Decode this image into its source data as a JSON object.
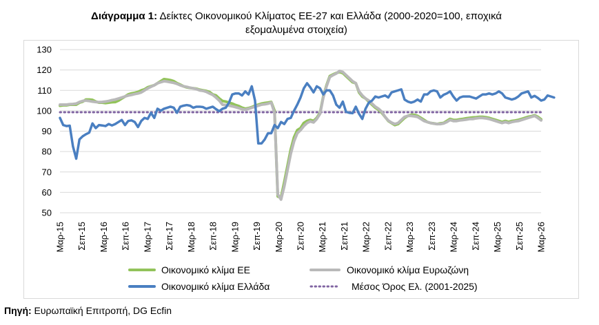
{
  "title": {
    "bold": "Διάγραμμα 1:",
    "rest": " Δείκτες Οικονομικού Κλίματος ΕΕ-27 και Ελλάδα (2000-2020=100, εποχικά",
    "line2": "εξομαλυμένα στοιχεία)"
  },
  "source": {
    "bold": "Πηγή:",
    "rest": " Ευρωπαϊκή Επιτροπή, DG Ecfin"
  },
  "colors": {
    "eu": "#92c35a",
    "euro": "#b9b9b9",
    "greece": "#4a7fc1",
    "avg": "#8064a2"
  },
  "chart_data": {
    "type": "line",
    "ylim": [
      50,
      130
    ],
    "yticks": [
      50,
      60,
      70,
      80,
      90,
      100,
      110,
      120,
      130
    ],
    "x_tick_labels": [
      "Μαρ-15",
      "Σεπ-15",
      "Μαρ-16",
      "Σεπ-16",
      "Μαρ-17",
      "Σεπ-17",
      "Μαρ-18",
      "Σεπ-18",
      "Μαρ-19",
      "Σεπ-19",
      "Μαρ-20",
      "Σεπ-20",
      "Μαρ-21",
      "Σεπ-21",
      "Μαρ-22",
      "Σεπ-22",
      "Μαρ-23",
      "Σεπ-23",
      "Μαρ-24",
      "Σεπ-24",
      "Μαρ-25",
      "Σεπ-25",
      "Μαρ-26"
    ],
    "grid": "horizontal",
    "legend_position": "bottom",
    "series": [
      {
        "name": "Οικονομικό κλίμα ΕΕ",
        "color_key": "eu",
        "values": [
          102.5,
          102.7,
          102.7,
          103,
          103,
          103,
          104,
          104.5,
          105.5,
          105.5,
          105.3,
          104.5,
          104,
          104,
          103.8,
          104,
          104.2,
          104.3,
          105,
          106,
          107,
          108,
          108.5,
          108.8,
          109.2,
          110,
          110.5,
          111.5,
          112,
          112.5,
          113.5,
          114.5,
          115.5,
          115.3,
          115,
          114.5,
          113.5,
          112.8,
          112,
          111.5,
          111.2,
          111,
          110.8,
          110.3,
          110,
          109.7,
          109.2,
          108,
          107.5,
          106,
          104.8,
          104.5,
          104,
          103.5,
          102.8,
          102.3,
          101.5,
          101,
          101.3,
          101.8,
          102.5,
          103,
          103.5,
          103.8,
          104,
          104.3,
          100,
          58,
          57.5,
          65,
          73,
          81,
          87,
          90.5,
          91.5,
          94,
          95,
          95.5,
          95,
          96.5,
          99,
          107,
          112.5,
          117,
          117.8,
          118.5,
          119,
          118.5,
          117,
          115.5,
          114,
          113.5,
          109,
          107,
          106,
          104.5,
          103,
          101.5,
          100.5,
          99,
          97,
          95,
          94,
          93,
          93.5,
          95,
          96.5,
          97.5,
          98,
          98,
          97.5,
          96.5,
          95.5,
          94.5,
          94,
          93.8,
          93.5,
          93.8,
          94,
          95,
          96,
          95.5,
          95.5,
          95.8,
          96,
          96.3,
          96.5,
          96.7,
          96.8,
          97,
          97,
          96.8,
          96.5,
          96,
          95.5,
          95,
          94.5,
          95,
          94.5,
          95,
          95.2,
          95.5,
          96,
          96.5,
          97,
          97.3,
          97.8,
          97,
          95.8
        ]
      },
      {
        "name": "Οικονομικό κλίμα Ευρωζώνη",
        "color_key": "euro",
        "values": [
          103,
          103,
          103,
          103.2,
          103.3,
          103.5,
          104.3,
          104.8,
          105,
          104.8,
          104.5,
          104.3,
          104.2,
          104.3,
          104.5,
          104.8,
          105.2,
          105.5,
          106,
          106.5,
          107,
          107.5,
          107.8,
          108.2,
          108.5,
          109,
          110,
          111,
          111.8,
          112.5,
          113.5,
          114,
          114.5,
          114.3,
          114,
          113.7,
          113.2,
          112.5,
          112,
          111.7,
          111.3,
          111,
          110.6,
          110,
          109.8,
          109.3,
          108.5,
          107.8,
          106.5,
          105,
          103,
          102.8,
          102.5,
          102.2,
          101.8,
          101.3,
          100.8,
          100.5,
          101,
          101.5,
          102,
          102.5,
          103,
          103.2,
          103.5,
          104,
          99,
          59,
          56.5,
          63,
          71,
          79,
          85,
          89,
          90.5,
          92.5,
          94,
          94.8,
          94.3,
          96,
          98.5,
          106.5,
          112,
          116.5,
          117.5,
          118.3,
          119.5,
          119,
          117.5,
          116,
          114.5,
          113.5,
          109.5,
          107.5,
          106,
          105,
          103.5,
          102,
          101,
          99.5,
          97,
          95.2,
          94.2,
          93.5,
          94,
          95.5,
          97,
          97.5,
          97.5,
          97.3,
          97,
          96,
          95,
          94.5,
          94,
          93.7,
          93.5,
          93.5,
          93.8,
          94.5,
          95.5,
          95,
          95,
          95.3,
          95.5,
          95.7,
          96,
          96,
          96.3,
          96.5,
          96.5,
          96.3,
          96,
          95.5,
          95,
          94.5,
          94,
          94.5,
          94,
          94.5,
          94.8,
          95,
          95.5,
          96,
          96.5,
          97,
          97.5,
          96.5,
          95.3
        ]
      },
      {
        "name": "Οικονομικό κλίμα Ελλάδα",
        "color_key": "greece",
        "values": [
          96.5,
          93,
          92.5,
          92.7,
          82.5,
          76.5,
          86,
          87.5,
          88.5,
          89.3,
          93.8,
          91.5,
          93,
          92.8,
          92.5,
          93.5,
          92.8,
          93.5,
          94.5,
          95.5,
          93,
          95,
          95.3,
          94.5,
          92,
          95,
          96.5,
          96,
          99,
          96.5,
          101,
          100,
          101,
          101.5,
          102,
          101.5,
          99,
          102,
          102.5,
          102.8,
          102.5,
          101.5,
          102,
          102,
          101.8,
          101,
          101.5,
          102,
          100.8,
          99.8,
          101,
          101.5,
          104,
          108,
          108.5,
          108.5,
          107.5,
          109.5,
          108,
          112,
          105,
          84,
          84,
          86,
          89,
          89,
          93,
          91.5,
          94.5,
          93.5,
          96,
          96.5,
          100,
          103,
          106.5,
          111,
          113.5,
          111.5,
          109,
          112,
          111,
          108,
          110,
          110,
          107.5,
          103,
          101.5,
          104.5,
          99.5,
          99,
          98.8,
          102,
          98.5,
          96,
          101,
          104,
          105,
          107,
          106.5,
          107,
          107.5,
          106.5,
          109,
          109.5,
          110,
          110.5,
          105.5,
          104.5,
          104,
          104.5,
          105.5,
          104.5,
          108,
          108,
          109.5,
          110,
          109.5,
          106.5,
          107.8,
          108.5,
          109.5,
          107,
          105,
          106.5,
          107,
          107,
          107,
          106.5,
          106,
          107,
          108,
          108,
          108.5,
          108,
          108.5,
          109.5,
          108.5,
          106.5,
          106,
          105.5,
          106,
          107,
          108.5,
          109,
          109.5,
          106.5,
          107.3,
          106.3,
          105,
          105.5,
          107.5,
          107,
          106.5
        ]
      },
      {
        "name": "Μέσος Όρος Ελ. (2001-2025)",
        "color_key": "avg",
        "constant": 99.3
      }
    ]
  }
}
